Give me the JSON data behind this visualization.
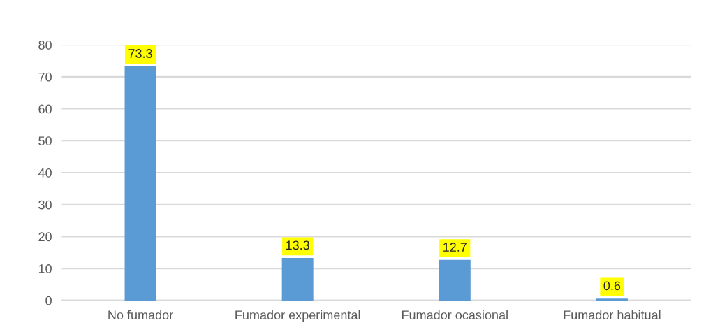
{
  "chart_data": {
    "type": "bar",
    "categories": [
      "No fumador",
      "Fumador experimental",
      "Fumador ocasional",
      "Fumador habitual"
    ],
    "series": [
      {
        "color": "#5b9bd5",
        "values": [
          73.3,
          13.3,
          12.7,
          0.6
        ]
      }
    ],
    "ylim": [
      0,
      80
    ],
    "yticks": [
      0,
      10,
      20,
      30,
      40,
      50,
      60,
      70,
      80
    ],
    "grid": "y",
    "data_labels": true
  }
}
